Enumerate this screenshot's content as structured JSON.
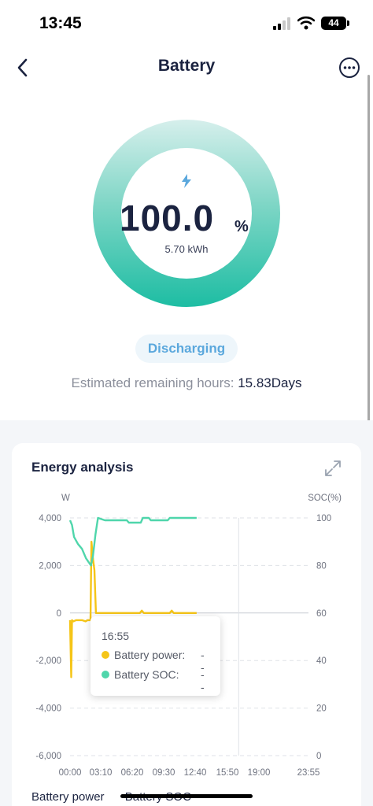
{
  "status_bar": {
    "time": "13:45",
    "battery_level": "44"
  },
  "header": {
    "title": "Battery"
  },
  "gauge": {
    "percent": "100.0",
    "unit": "%",
    "energy": "5.70 kWh",
    "fill_fraction": 1.0
  },
  "status": {
    "label": "Discharging"
  },
  "remaining": {
    "label": "Estimated remaining hours: ",
    "value": "15.83Days"
  },
  "card": {
    "title": "Energy analysis"
  },
  "tooltip": {
    "time": "16:55",
    "power_label": "Battery power:",
    "power_value": "--",
    "soc_label": "Battery SOC:",
    "soc_value": "--"
  },
  "legend": {
    "items": [
      "Battery power",
      "Battery SOC"
    ]
  },
  "colors": {
    "power": "#f5c518",
    "soc": "#4fd6ab",
    "accent": "#1dbda3",
    "discharging": "#5ba8dd"
  },
  "chart_data": {
    "type": "line",
    "y_left_label": "W",
    "y_right_label": "SOC(%)",
    "y_left_ticks": [
      "4,000",
      "2,000",
      "0",
      "-2,000",
      "-4,000",
      "-6,000"
    ],
    "y_right_ticks": [
      "100",
      "80",
      "60",
      "40",
      "20",
      "0"
    ],
    "x_ticks": [
      "00:00",
      "03:10",
      "06:20",
      "09:30",
      "12:40",
      "15:50",
      "19:00",
      "23:55"
    ],
    "ylim_left": [
      -6000,
      4000
    ],
    "ylim_right": [
      0,
      100
    ],
    "series": [
      {
        "name": "Battery power",
        "axis": "left",
        "color": "#f5c518",
        "points": [
          [
            0.0,
            -300
          ],
          [
            0.12,
            -2700
          ],
          [
            0.2,
            -300
          ],
          [
            0.35,
            -350
          ],
          [
            0.6,
            -300
          ],
          [
            1.2,
            -300
          ],
          [
            1.55,
            -350
          ],
          [
            1.75,
            -300
          ],
          [
            2.05,
            -300
          ],
          [
            2.15,
            3000
          ],
          [
            2.3,
            2300
          ],
          [
            2.45,
            1800
          ],
          [
            2.6,
            0
          ],
          [
            4.0,
            0
          ],
          [
            7.0,
            0
          ],
          [
            7.2,
            100
          ],
          [
            7.4,
            0
          ],
          [
            10.0,
            0
          ],
          [
            10.2,
            100
          ],
          [
            10.4,
            0
          ],
          [
            12.7,
            0
          ]
        ]
      },
      {
        "name": "Battery SOC",
        "axis": "right",
        "color": "#4fd6ab",
        "points": [
          [
            0.0,
            99
          ],
          [
            0.2,
            97
          ],
          [
            0.4,
            92
          ],
          [
            0.8,
            89
          ],
          [
            1.2,
            87
          ],
          [
            1.6,
            83
          ],
          [
            2.1,
            80
          ],
          [
            2.3,
            84
          ],
          [
            2.55,
            93
          ],
          [
            2.8,
            100
          ],
          [
            3.5,
            99
          ],
          [
            5.7,
            99
          ],
          [
            5.9,
            98
          ],
          [
            7.1,
            98
          ],
          [
            7.3,
            100
          ],
          [
            7.9,
            100
          ],
          [
            8.1,
            99
          ],
          [
            9.8,
            99
          ],
          [
            10.0,
            100
          ],
          [
            12.7,
            100
          ]
        ]
      }
    ]
  }
}
